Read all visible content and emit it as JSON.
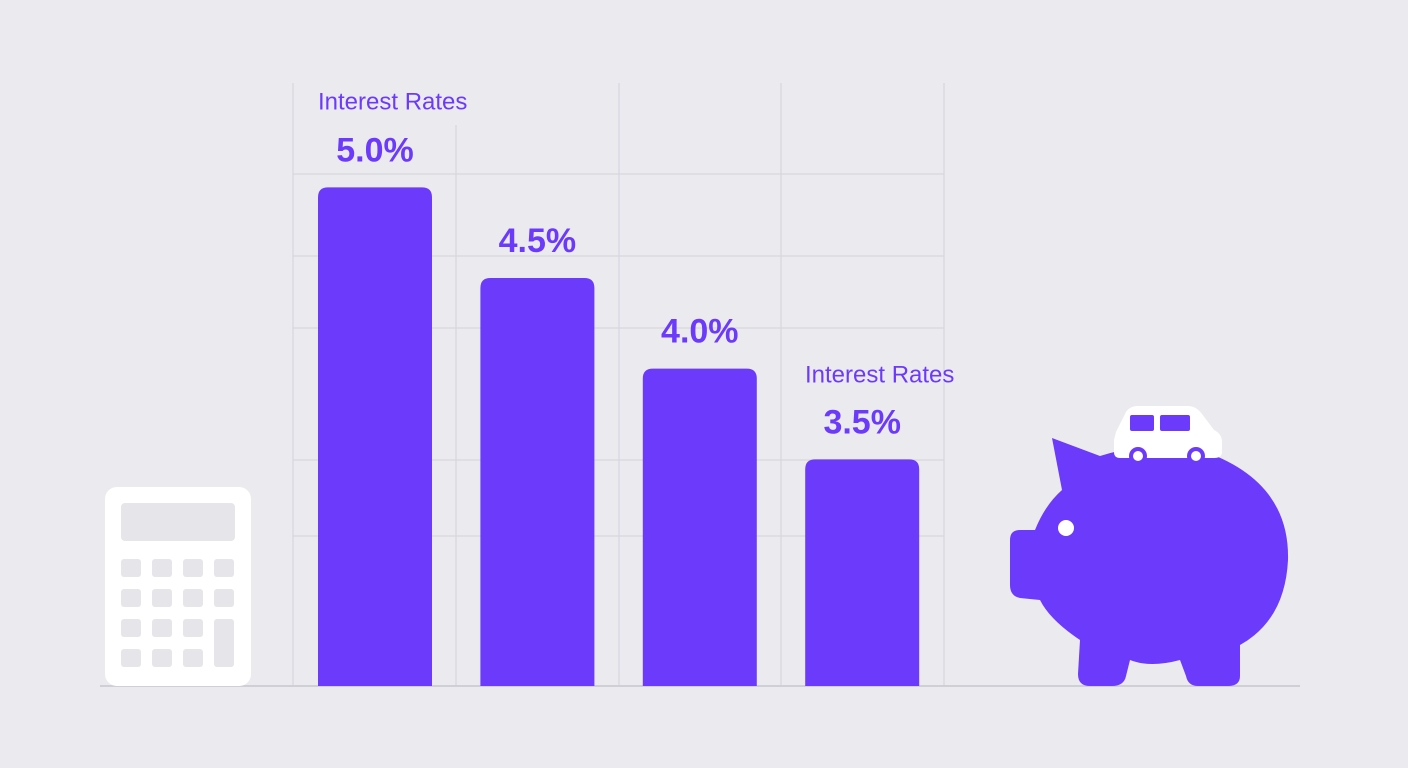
{
  "chart_data": {
    "type": "bar",
    "annotations": [
      "Interest Rates",
      "Interest Rates"
    ],
    "categories": [
      null,
      null,
      null,
      null
    ],
    "values": [
      5.0,
      4.5,
      4.0,
      3.5
    ],
    "value_labels": [
      "5.0%",
      "4.5%",
      "4.0%",
      "3.5%"
    ],
    "color": "#6c3afa",
    "ylim": [
      2.25,
      5.25
    ]
  }
}
